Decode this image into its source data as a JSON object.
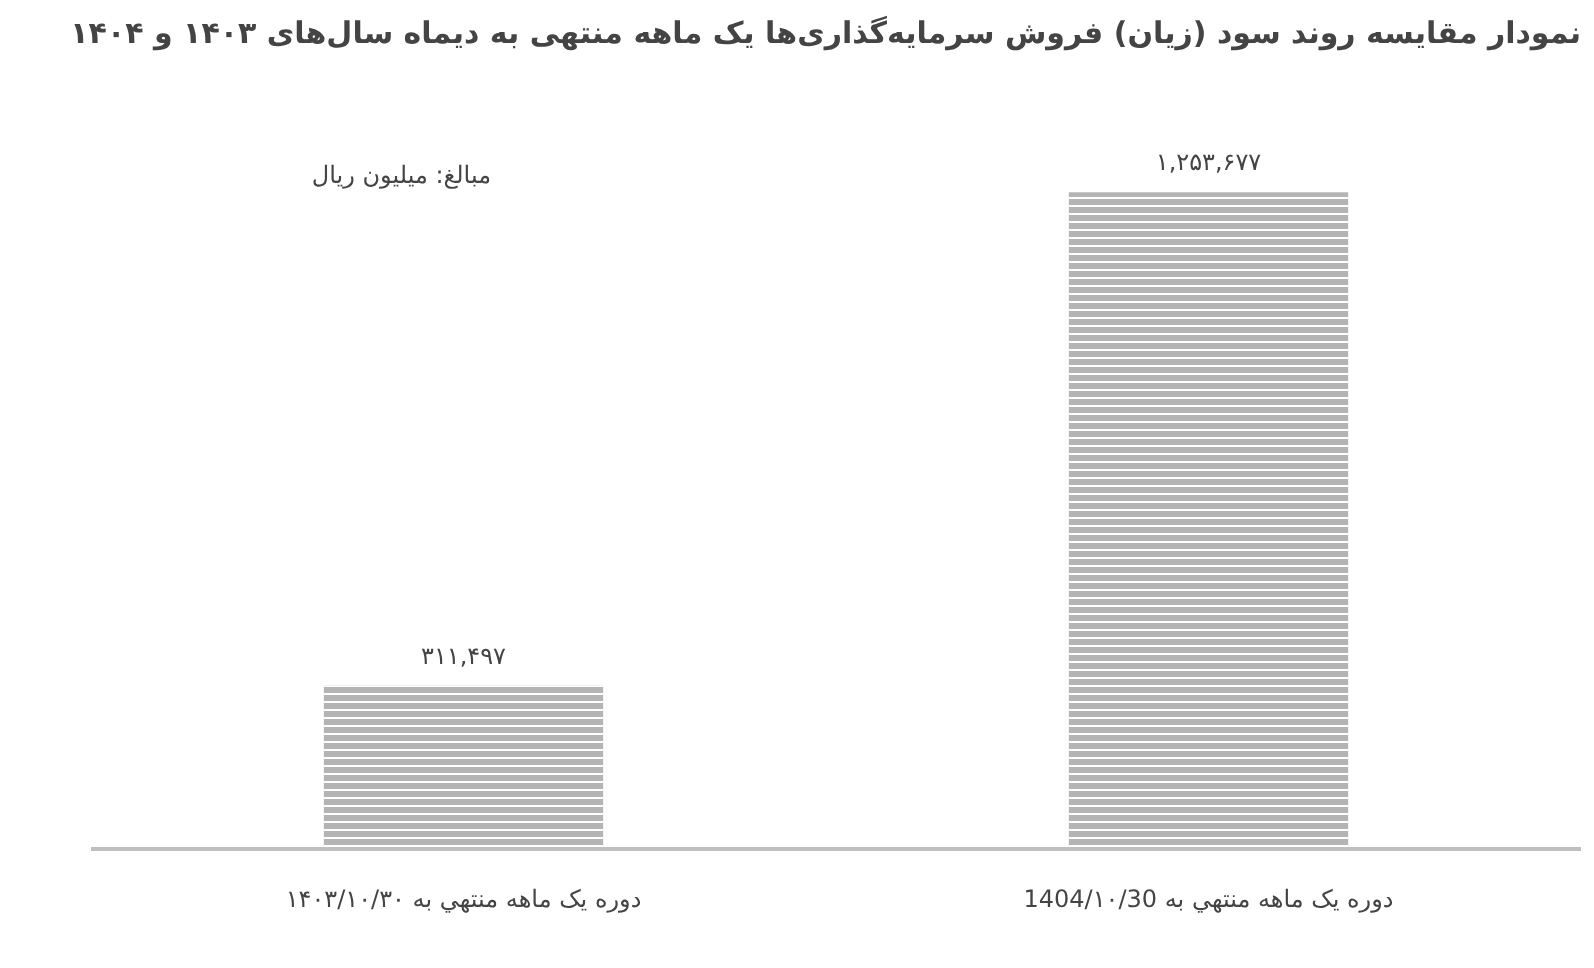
{
  "chart_data": {
    "type": "bar",
    "title": "نمودار مقایسه روند سود (زیان) فروش سرمایه‌گذاری‌ها یک ماهه منتهی به دیماه سال‌های ۱۴۰۳ و ۱۴۰۴",
    "annotations": [
      "مبالغ: میلیون ریال"
    ],
    "categories": [
      "دوره یک ماهه منتهي به ۱۴۰۳/۱۰/۳۰",
      "دوره یک ماهه منتهي به 1404/۱۰/30"
    ],
    "values": [
      311497,
      1253677
    ],
    "value_labels": [
      "۳۱۱,۴۹۷",
      "۱,۲۵۳,۶۷۷"
    ],
    "color": "#b4b4b4",
    "grid": false
  }
}
